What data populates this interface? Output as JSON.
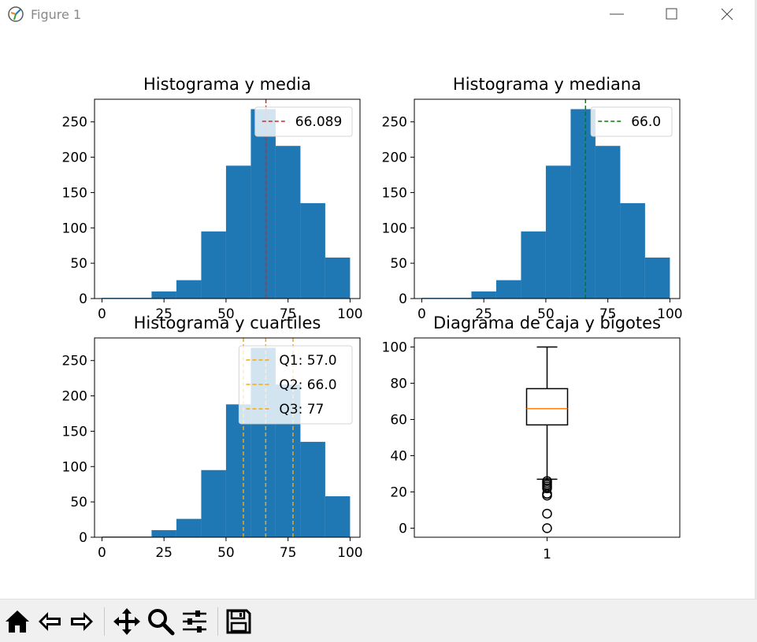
{
  "window": {
    "title": "Figure 1",
    "minimize_icon": "minimize-icon",
    "maximize_icon": "maximize-icon",
    "close_icon": "close-icon"
  },
  "toolbar": {
    "items": [
      "home-icon",
      "back-arrow-icon",
      "forward-arrow-icon",
      "pan-icon",
      "zoom-icon",
      "configure-subplots-icon",
      "save-icon"
    ]
  },
  "colors": {
    "bar": "#1f77b4",
    "mean_line": "#d62728",
    "median_line": "#008000",
    "quartile_line": "#ffa500",
    "box_median": "#ff7f0e"
  },
  "chart_data": [
    {
      "type": "bar",
      "title": "Histograma y media",
      "bin_edges": [
        0,
        10,
        20,
        30,
        40,
        50,
        60,
        70,
        80,
        90,
        100
      ],
      "values": [
        1,
        1,
        10,
        26,
        95,
        188,
        268,
        216,
        135,
        58
      ],
      "xticks": [
        "0",
        "25",
        "50",
        "75",
        "100"
      ],
      "yticks": [
        "0",
        "50",
        "100",
        "150",
        "200",
        "250"
      ],
      "xlim": [
        -3,
        104
      ],
      "ylim": [
        0,
        282
      ],
      "vlines": [
        {
          "x": 66.089,
          "label": "66.089",
          "color": "#d62728"
        }
      ],
      "legend": "upper right"
    },
    {
      "type": "bar",
      "title": "Histograma y mediana",
      "bin_edges": [
        0,
        10,
        20,
        30,
        40,
        50,
        60,
        70,
        80,
        90,
        100
      ],
      "values": [
        1,
        1,
        10,
        26,
        95,
        188,
        268,
        216,
        135,
        58
      ],
      "xticks": [
        "0",
        "25",
        "50",
        "75",
        "100"
      ],
      "yticks": [
        "0",
        "50",
        "100",
        "150",
        "200",
        "250"
      ],
      "xlim": [
        -3,
        104
      ],
      "ylim": [
        0,
        282
      ],
      "vlines": [
        {
          "x": 66.0,
          "label": "66.0",
          "color": "#008000"
        }
      ],
      "legend": "upper right"
    },
    {
      "type": "bar",
      "title": "Histograma y cuartiles",
      "bin_edges": [
        0,
        10,
        20,
        30,
        40,
        50,
        60,
        70,
        80,
        90,
        100
      ],
      "values": [
        1,
        1,
        10,
        26,
        95,
        188,
        268,
        216,
        135,
        58
      ],
      "xticks": [
        "0",
        "25",
        "50",
        "75",
        "100"
      ],
      "yticks": [
        "0",
        "50",
        "100",
        "150",
        "200",
        "250"
      ],
      "xlim": [
        -3,
        104
      ],
      "ylim": [
        0,
        282
      ],
      "vlines": [
        {
          "x": 57.0,
          "label": "Q1: 57.0",
          "color": "#ffa500"
        },
        {
          "x": 66.0,
          "label": "Q2: 66.0",
          "color": "#ffa500"
        },
        {
          "x": 77,
          "label": "Q3: 77",
          "color": "#ffa500"
        }
      ],
      "legend": "upper right"
    },
    {
      "type": "box",
      "title": "Diagrama de caja y bigotes",
      "category": "1",
      "min_whisker": 27,
      "q1": 57,
      "median": 66,
      "q3": 77,
      "max_whisker": 100,
      "outliers": [
        26,
        25,
        24,
        23,
        22,
        19,
        18,
        8,
        0
      ],
      "yticks": [
        "0",
        "20",
        "40",
        "60",
        "80",
        "100"
      ],
      "ylim": [
        -5,
        105
      ]
    }
  ]
}
